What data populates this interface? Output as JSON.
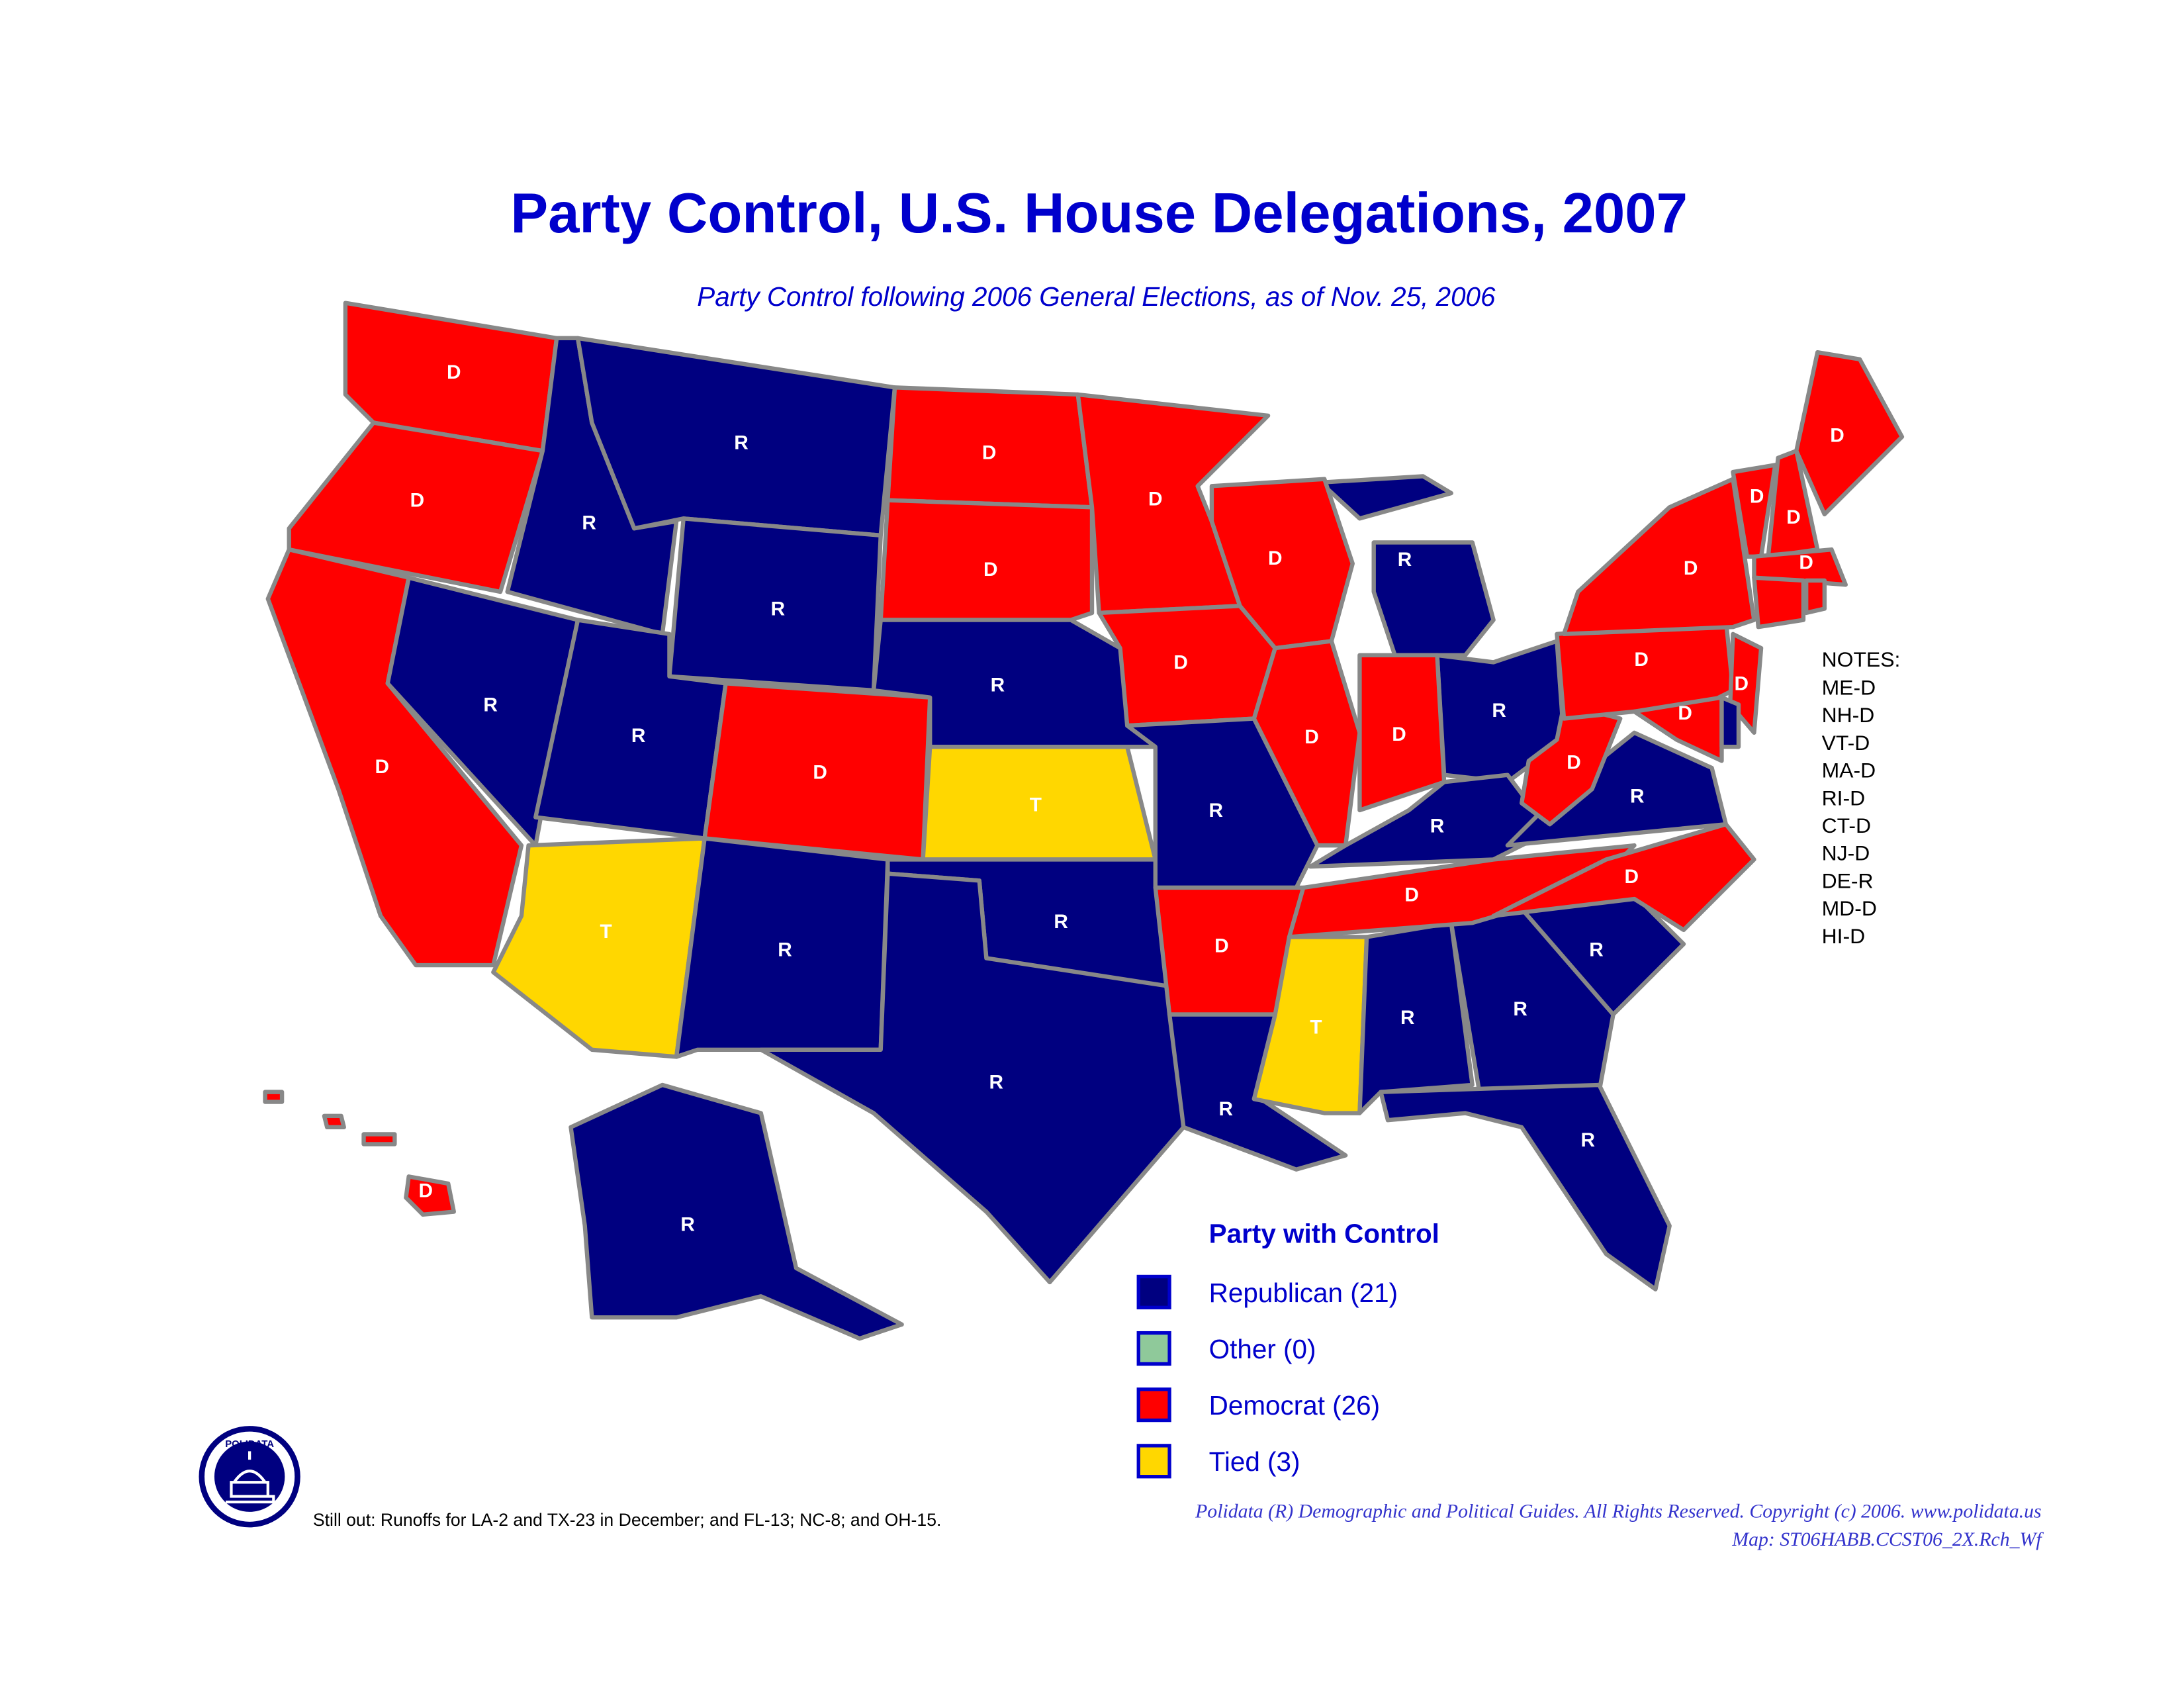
{
  "map": {
    "title": "Party Control, U.S. House Delegations, 2007",
    "subtitle": "Party Control following 2006 General Elections, as of Nov. 25, 2006",
    "state_labels": [
      "D",
      "D",
      "D",
      "R",
      "R",
      "R",
      "R",
      "R",
      "T",
      "D",
      "R",
      "D",
      "D",
      "R",
      "T",
      "R",
      "R",
      "D",
      "D",
      "R",
      "D",
      "R",
      "R",
      "D",
      "D",
      "R",
      "R",
      "D",
      "T",
      "R",
      "R",
      "R",
      "R",
      "D",
      "R",
      "D",
      "D",
      "D",
      "D",
      "D",
      "D",
      "D",
      "D",
      "D",
      "D",
      "R",
      "D"
    ],
    "legend": {
      "title": "Party with Control",
      "items": [
        {
          "label": "Republican (21)",
          "color": "#000080"
        },
        {
          "label": "Other (0)",
          "color": "#8fc99a"
        },
        {
          "label": "Democrat (26)",
          "color": "#ff0000"
        },
        {
          "label": "Tied (3)",
          "color": "#ffd700"
        }
      ]
    },
    "notes": {
      "title": "NOTES:",
      "lines": [
        "ME-D",
        "NH-D",
        "VT-D",
        "MA-D",
        "RI-D",
        "CT-D",
        "NJ-D",
        "DE-R",
        "MD-D",
        "HI-D"
      ]
    },
    "footnote": "Still out: Runoffs for LA-2 and TX-23 in December; and FL-13; NC-8; and OH-15.",
    "logo": "POLIDATA",
    "copyright": "Polidata (R) Demographic and Political Guides. All Rights Reserved. Copyright (c) 2006. www.polidata.us",
    "map_id": "Map: ST06HABB.CCST06_2X.Rch_Wf"
  }
}
